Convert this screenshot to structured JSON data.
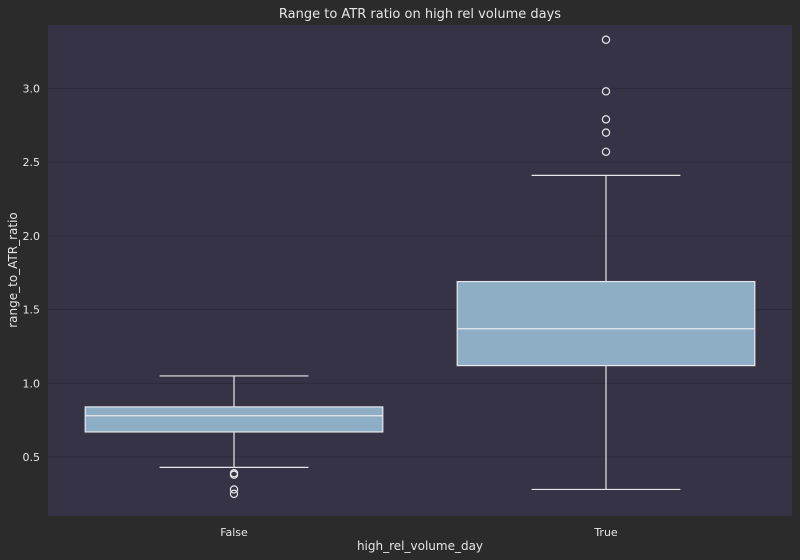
{
  "chart_data": {
    "type": "box",
    "title": "Range to ATR ratio on high rel volume days",
    "xlabel": "high_rel_volume_day",
    "ylabel": "range_to_ATR_ratio",
    "categories": [
      "False",
      "True"
    ],
    "ylim": [
      0.1,
      3.43
    ],
    "yticks": [
      0.5,
      1.0,
      1.5,
      2.0,
      2.5,
      3.0
    ],
    "ytick_labels": [
      "0.5",
      "1.0",
      "1.5",
      "2.0",
      "2.5",
      "3.0"
    ],
    "grid": true,
    "boxes": [
      {
        "category": "False",
        "whisker_low": 0.43,
        "q1": 0.67,
        "median": 0.78,
        "q3": 0.84,
        "whisker_high": 1.05,
        "outliers": [
          0.39,
          0.38,
          0.28,
          0.25
        ]
      },
      {
        "category": "True",
        "whisker_low": 0.28,
        "q1": 1.12,
        "median": 1.37,
        "q3": 1.69,
        "whisker_high": 2.41,
        "outliers": [
          2.57,
          2.7,
          2.79,
          2.98,
          3.33
        ]
      }
    ],
    "colors": {
      "background": "#2b2b2b",
      "plot_area": "#353345",
      "box_fill": "#8eaec6",
      "lines": "#e8e8ec",
      "grid": "#2c2a3a",
      "text": "#e6e6e6"
    }
  }
}
